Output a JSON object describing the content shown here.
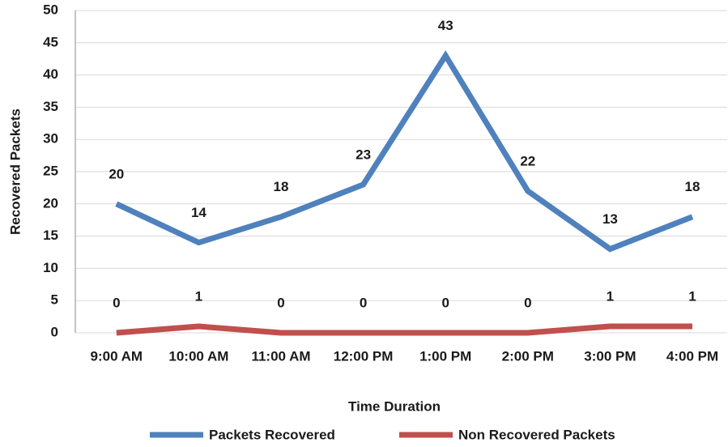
{
  "chart_data": {
    "type": "line",
    "x_label": "Time Duration",
    "y_label": "Recovered Packets",
    "categories": [
      "9:00 AM",
      "10:00 AM",
      "11:00 AM",
      "12:00 PM",
      "1:00 PM",
      "2:00 PM",
      "3:00 PM",
      "4:00 PM"
    ],
    "series": [
      {
        "name": "Packets Recovered",
        "color": "#4f81bd",
        "values": [
          20,
          14,
          18,
          23,
          43,
          22,
          13,
          18
        ]
      },
      {
        "name": "Non Recovered Packets",
        "color": "#c0504d",
        "values": [
          0,
          1,
          0,
          0,
          0,
          0,
          1,
          1
        ]
      }
    ],
    "ylim": [
      0,
      50
    ],
    "yticks": [
      0,
      5,
      10,
      15,
      20,
      25,
      30,
      35,
      40,
      45,
      50
    ],
    "grid": true,
    "legend": "bottom"
  }
}
